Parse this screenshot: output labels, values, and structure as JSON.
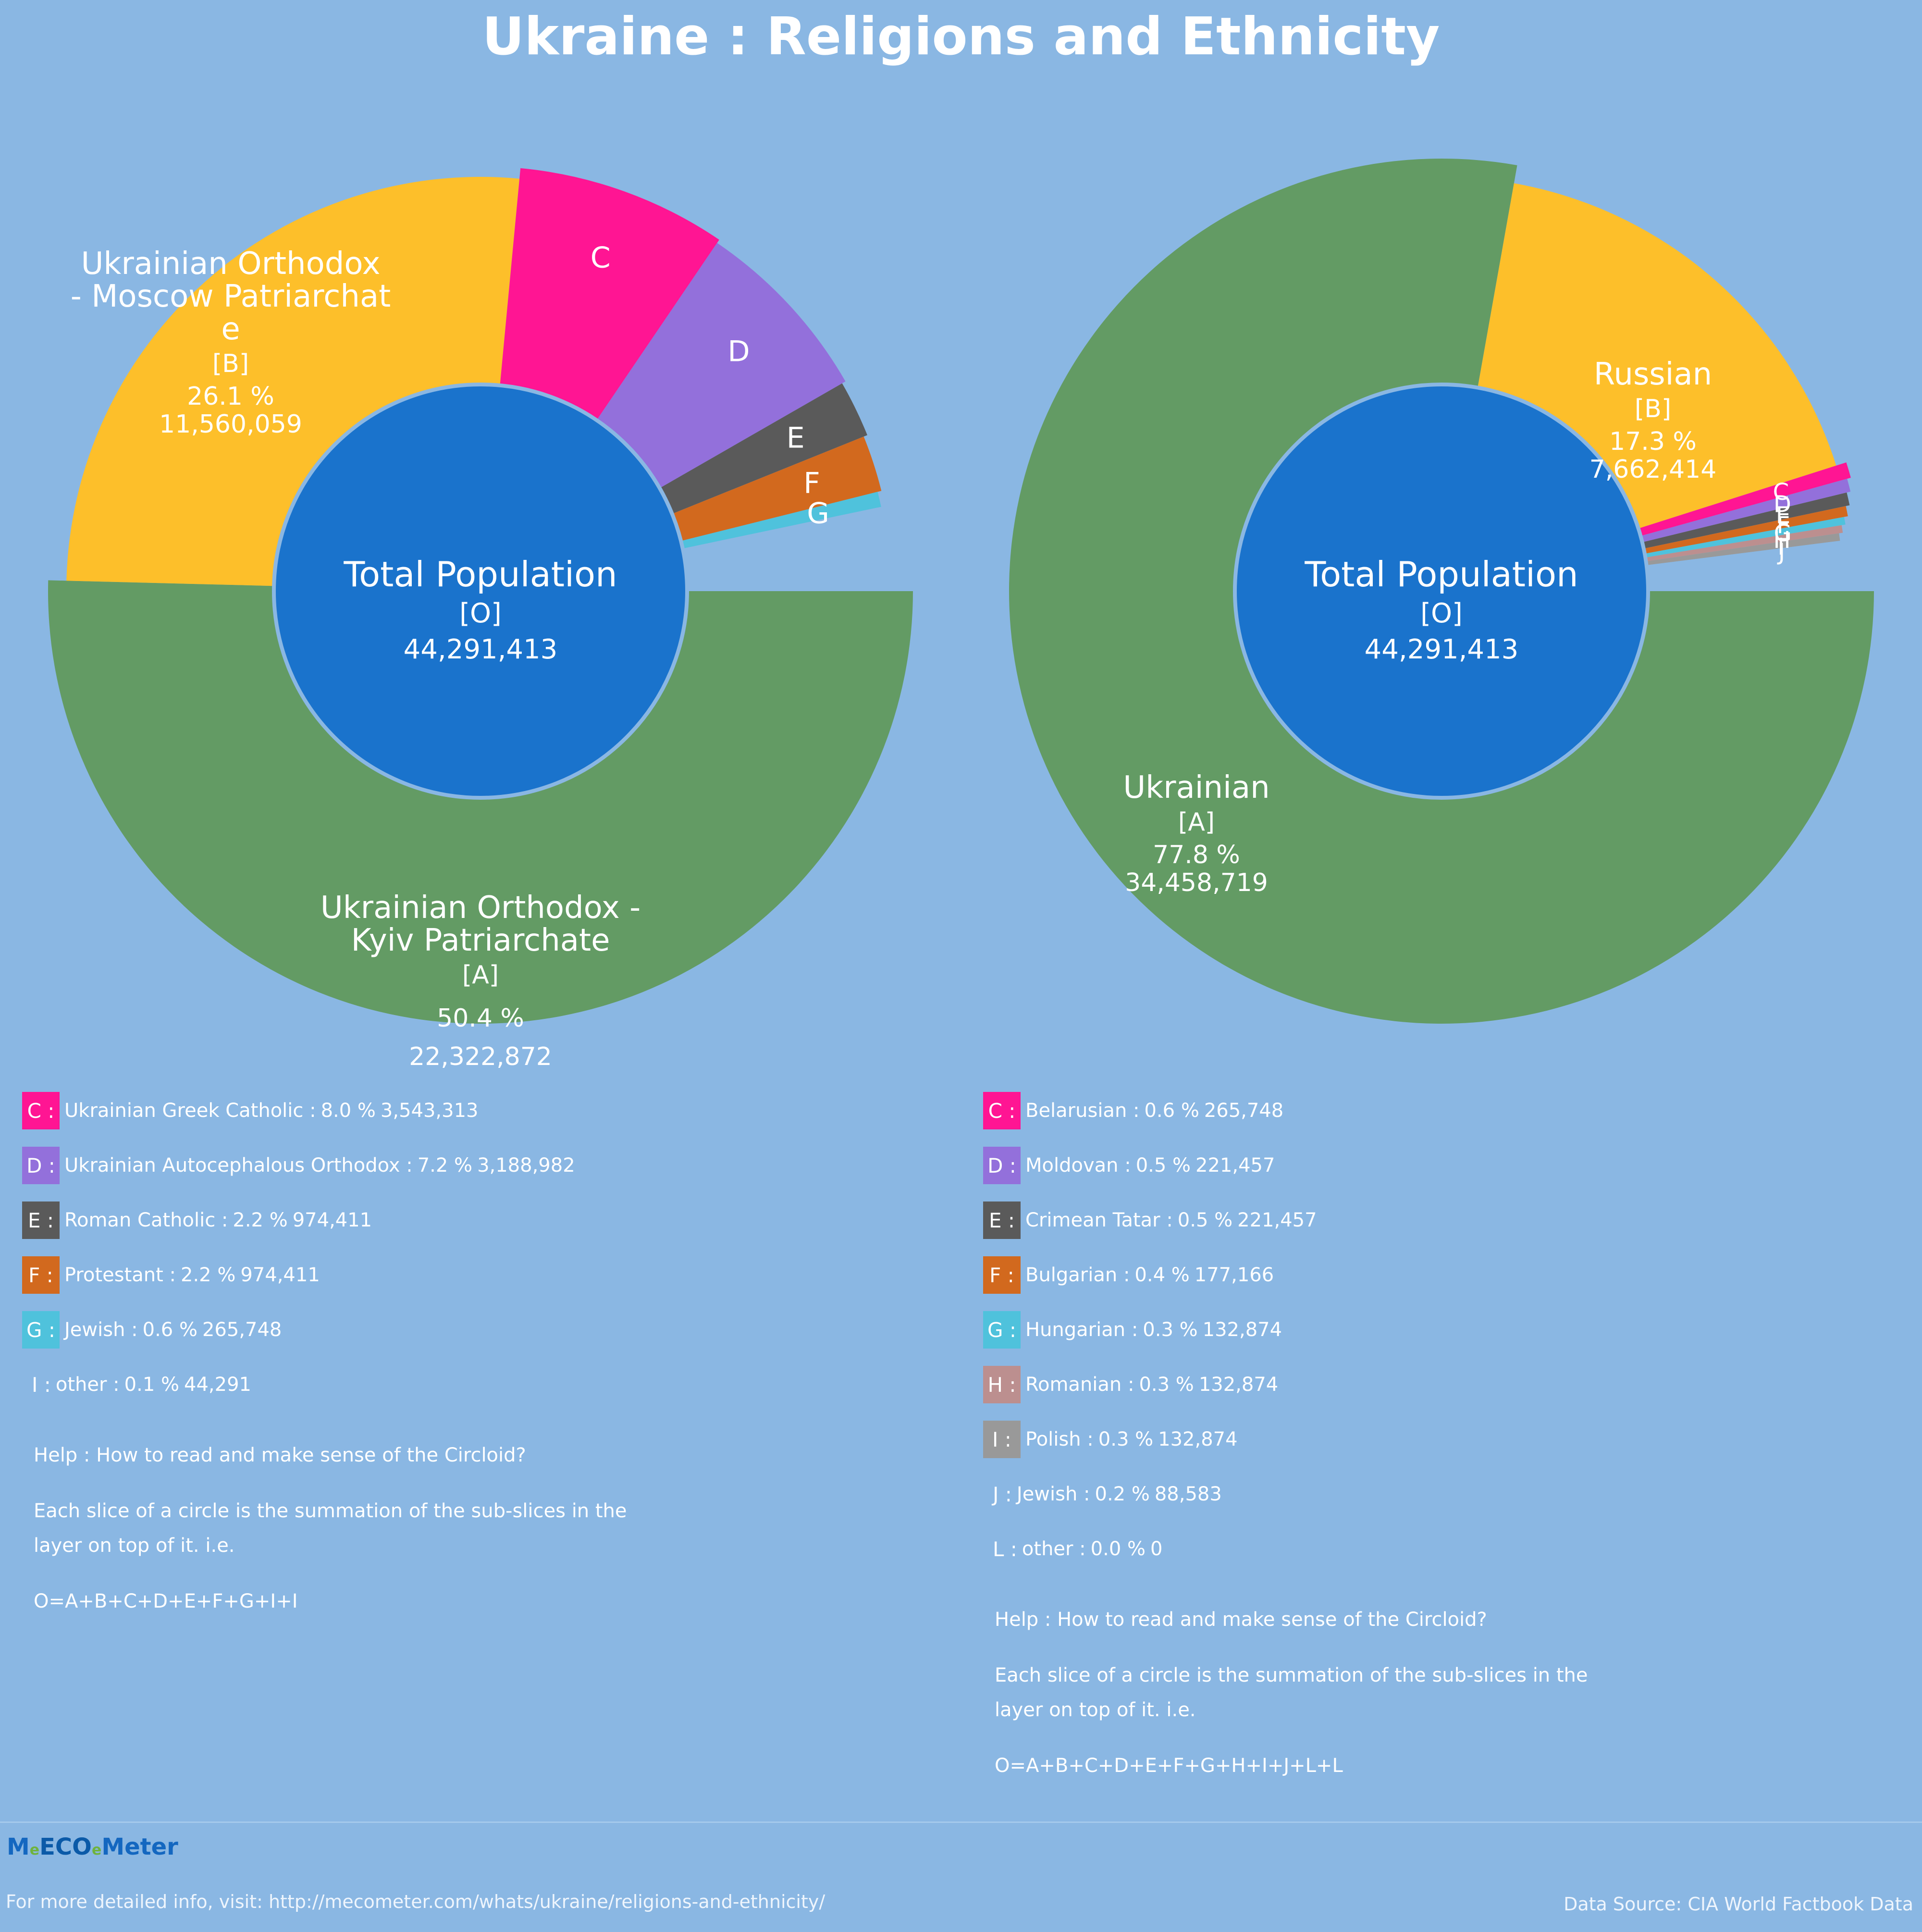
{
  "title": "Ukraine : Religions and Ethnicity",
  "colors": {
    "background": "#8ab7e3",
    "center": "#1a73cc",
    "center_stroke": "#8ab7e3"
  },
  "chart_data": [
    {
      "type": "pie",
      "subtype": "donut",
      "name": "Religions",
      "center": {
        "label": "Total Population",
        "tag": "[O]",
        "value": "44,291,413"
      },
      "slices": [
        {
          "key": "A",
          "tag": "[A]",
          "name": "Ukrainian Orthodox - Kyiv Patriarchate",
          "label_lines": [
            "Ukrainian Orthodox -",
            "Kyiv Patriarchate"
          ],
          "percent": 50.4,
          "percent_label": "50.4 %",
          "count": "22,322,872",
          "color": "#639b64"
        },
        {
          "key": "B",
          "tag": "[B]",
          "name": "Ukrainian Orthodox - Moscow Patriarchate",
          "label_lines": [
            "Ukrainian Orthodox",
            "- Moscow Patriarchat",
            "e"
          ],
          "percent": 26.1,
          "percent_label": "26.1 %",
          "count": "11,560,059",
          "color": "#fdbf2a"
        },
        {
          "key": "C",
          "name": "Ukrainian Greek Catholic",
          "percent": 8.0,
          "percent_label": "8.0 %",
          "count": "3,543,313",
          "color": "#ff1593"
        },
        {
          "key": "D",
          "name": "Ukrainian Autocephalous Orthodox",
          "percent": 7.2,
          "percent_label": "7.2 %",
          "count": "3,188,982",
          "color": "#9370db"
        },
        {
          "key": "E",
          "name": "Roman Catholic",
          "percent": 2.2,
          "percent_label": "2.2 %",
          "count": "974,411",
          "color": "#5a5a5a"
        },
        {
          "key": "F",
          "name": "Protestant",
          "percent": 2.2,
          "percent_label": "2.2 %",
          "count": "974,411",
          "color": "#d2691e"
        },
        {
          "key": "G",
          "name": "Jewish",
          "percent": 0.6,
          "percent_label": "0.6 %",
          "count": "265,748",
          "color": "#4fc2dc"
        },
        {
          "key": "I",
          "name": "other",
          "percent": 0.1,
          "percent_label": "0.1 %",
          "count": "44,291",
          "color": "#8ab7e3"
        }
      ]
    },
    {
      "type": "pie",
      "subtype": "donut",
      "name": "Ethnicity",
      "center": {
        "label": "Total Population",
        "tag": "[O]",
        "value": "44,291,413"
      },
      "slices": [
        {
          "key": "A",
          "tag": "[A]",
          "name": "Ukrainian",
          "label_lines": [
            "Ukrainian"
          ],
          "percent": 77.8,
          "percent_label": "77.8 %",
          "count": "34,458,719",
          "color": "#639b64"
        },
        {
          "key": "B",
          "tag": "[B]",
          "name": "Russian",
          "label_lines": [
            "Russian"
          ],
          "percent": 17.3,
          "percent_label": "17.3 %",
          "count": "7,662,414",
          "color": "#fdbf2a"
        },
        {
          "key": "C",
          "name": "Belarusian",
          "percent": 0.6,
          "percent_label": "0.6 %",
          "count": "265,748",
          "color": "#ff1593"
        },
        {
          "key": "D",
          "name": "Moldovan",
          "percent": 0.5,
          "percent_label": "0.5 %",
          "count": "221,457",
          "color": "#9370db"
        },
        {
          "key": "E",
          "name": "Crimean Tatar",
          "percent": 0.5,
          "percent_label": "0.5 %",
          "count": "221,457",
          "color": "#5a5a5a"
        },
        {
          "key": "F",
          "name": "Bulgarian",
          "percent": 0.4,
          "percent_label": "0.4 %",
          "count": "177,166",
          "color": "#d2691e"
        },
        {
          "key": "G",
          "name": "Hungarian",
          "percent": 0.3,
          "percent_label": "0.3 %",
          "count": "132,874",
          "color": "#4fc2dc"
        },
        {
          "key": "H",
          "name": "Romanian",
          "percent": 0.3,
          "percent_label": "0.3 %",
          "count": "132,874",
          "color": "#bc8f8f"
        },
        {
          "key": "I",
          "name": "Polish",
          "percent": 0.3,
          "percent_label": "0.3 %",
          "count": "132,874",
          "color": "#999999"
        },
        {
          "key": "J",
          "name": "Jewish",
          "percent": 0.2,
          "percent_label": "0.2 %",
          "count": "88,583",
          "color": "#8ab7e3"
        },
        {
          "key": "L",
          "name": "other",
          "percent": 0.0,
          "percent_label": "0.0 %",
          "count": "0",
          "color": "#8ab7e3"
        }
      ]
    }
  ],
  "legend_left": [
    {
      "swatch": "C :",
      "name": "Ukrainian Greek Catholic :",
      "pct": "8.0 %",
      "count": "3,543,313",
      "color": "#ff1593"
    },
    {
      "swatch": "D :",
      "name": "Ukrainian Autocephalous Orthodox :",
      "pct": "7.2 %",
      "count": "3,188,982",
      "color": "#9370db"
    },
    {
      "swatch": "E :",
      "name": "Roman Catholic :",
      "pct": "2.2 %",
      "count": "974,411",
      "color": "#5a5a5a"
    },
    {
      "swatch": "F :",
      "name": "Protestant :",
      "pct": "2.2 %",
      "count": "974,411",
      "color": "#d2691e"
    },
    {
      "swatch": "G :",
      "name": "Jewish :",
      "pct": "0.6 %",
      "count": "265,748",
      "color": "#4fc2dc"
    },
    {
      "swatch": "I :",
      "name": "other :",
      "pct": "0.1 %",
      "count": "44,291",
      "color": ""
    }
  ],
  "legend_right": [
    {
      "swatch": "C :",
      "name": "Belarusian :",
      "pct": "0.6 %",
      "count": "265,748",
      "color": "#ff1593"
    },
    {
      "swatch": "D :",
      "name": "Moldovan :",
      "pct": "0.5 %",
      "count": "221,457",
      "color": "#9370db"
    },
    {
      "swatch": "E :",
      "name": "Crimean Tatar :",
      "pct": "0.5 %",
      "count": "221,457",
      "color": "#5a5a5a"
    },
    {
      "swatch": "F :",
      "name": "Bulgarian :",
      "pct": "0.4 %",
      "count": "177,166",
      "color": "#d2691e"
    },
    {
      "swatch": "G :",
      "name": "Hungarian :",
      "pct": "0.3 %",
      "count": "132,874",
      "color": "#4fc2dc"
    },
    {
      "swatch": "H :",
      "name": "Romanian :",
      "pct": "0.3 %",
      "count": "132,874",
      "color": "#bc8f8f"
    },
    {
      "swatch": "I :",
      "name": "Polish :",
      "pct": "0.3 %",
      "count": "132,874",
      "color": "#999999"
    },
    {
      "swatch": "J :",
      "name": "Jewish :",
      "pct": "0.2 %",
      "count": "88,583",
      "color": ""
    },
    {
      "swatch": "L :",
      "name": "other :",
      "pct": "0.0 %",
      "count": "0",
      "color": ""
    }
  ],
  "help_left": {
    "heading": "Help : How to read and make sense of the Circloid?",
    "body": "Each slice of a circle is the summation of the sub-slices in the layer on top of it. i.e.",
    "formula": "O=A+B+C+D+E+F+G+I+I"
  },
  "help_right": {
    "heading": "Help : How to read and make sense of the Circloid?",
    "body": "Each slice of a circle is the summation of the sub-slices in the layer on top of it. i.e.",
    "formula": "O=A+B+C+D+E+F+G+H+I+J+L+L"
  },
  "footer": {
    "logo_m": "M",
    "logo_dot": "e",
    "logo_eco": "ECO",
    "logo_dot2": "e",
    "logo_meter": "Meter",
    "link": "For more detailed info, visit: http://mecometer.com/whats/ukraine/religions-and-ethnicity/",
    "source": "Data Source: CIA World Factbook Data"
  }
}
